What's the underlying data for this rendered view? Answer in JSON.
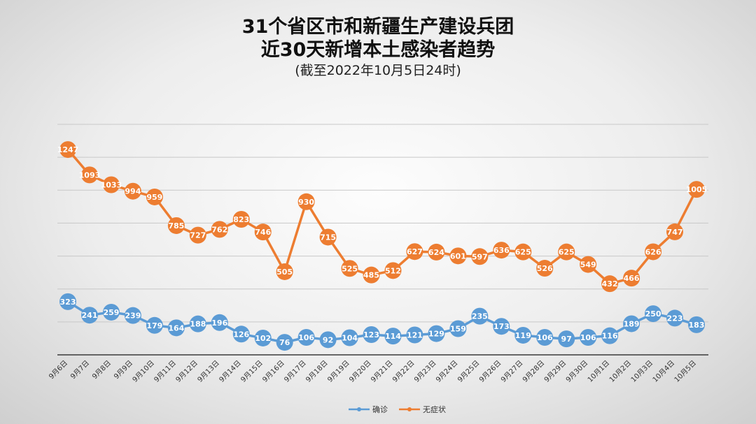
{
  "title": {
    "line1": "31个省区市和新疆生产建设兵团",
    "line2": "近30天新增本土感染者趋势",
    "line3": "(截至2022年10月5日24时)"
  },
  "chart_data": {
    "type": "line",
    "categories": [
      "9月6日",
      "9月7日",
      "9月8日",
      "9月9日",
      "9月10日",
      "9月11日",
      "9月12日",
      "9月13日",
      "9月14日",
      "9月15日",
      "9月16日",
      "9月17日",
      "9月18日",
      "9月19日",
      "9月20日",
      "9月21日",
      "9月22日",
      "9月23日",
      "9月24日",
      "9月25日",
      "9月26日",
      "9月27日",
      "9月28日",
      "9月29日",
      "9月30日",
      "10月1日",
      "10月2日",
      "10月3日",
      "10月4日",
      "10月5日"
    ],
    "series": [
      {
        "name": "确诊",
        "color": "#5b9bd5",
        "values": [
          323,
          241,
          259,
          239,
          179,
          164,
          188,
          196,
          126,
          102,
          76,
          106,
          92,
          104,
          123,
          114,
          121,
          129,
          159,
          235,
          173,
          119,
          106,
          97,
          106,
          116,
          189,
          250,
          223,
          183
        ]
      },
      {
        "name": "无症状",
        "color": "#ed7d31",
        "values": [
          1247,
          1093,
          1033,
          994,
          959,
          785,
          727,
          762,
          823,
          746,
          505,
          930,
          715,
          525,
          485,
          512,
          627,
          624,
          601,
          597,
          636,
          625,
          526,
          625,
          549,
          432,
          466,
          626,
          747,
          1005
        ]
      }
    ],
    "ylim": [
      0,
      1400
    ],
    "grid": true,
    "legend": "bottom-center"
  }
}
